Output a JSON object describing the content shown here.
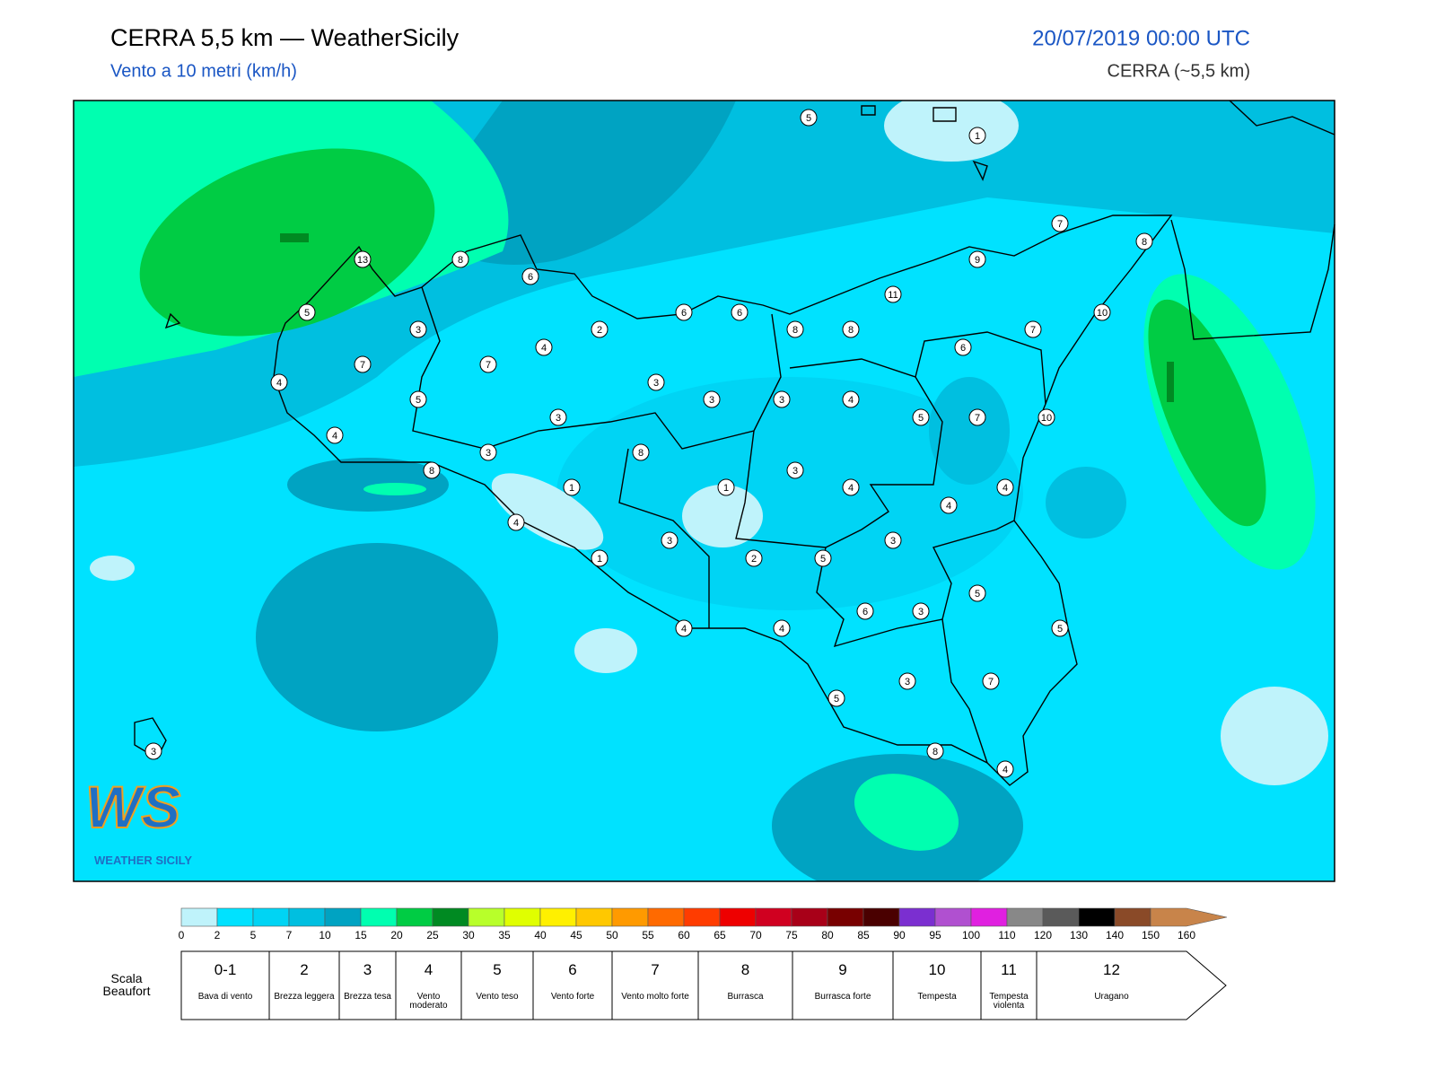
{
  "header": {
    "title": "CERRA 5,5 km — WeatherSicily",
    "subtitle": "Vento a 10 metri (km/h)",
    "datetime": "20/07/2019 00:00 UTC",
    "model": "CERRA (~5,5 km)"
  },
  "map": {
    "stations": [
      5,
      1,
      7,
      8,
      13,
      8,
      6,
      9,
      11,
      5,
      6,
      6,
      8,
      8,
      7,
      10,
      3,
      2,
      4,
      6,
      7,
      7,
      4,
      3,
      3,
      3,
      4,
      5,
      3,
      5,
      7,
      10,
      4,
      8,
      3,
      8,
      3,
      1,
      1,
      4,
      4,
      4,
      4,
      3,
      3,
      1,
      2,
      5,
      5,
      6,
      3,
      4,
      4,
      5,
      3,
      7,
      5,
      8,
      4,
      3
    ]
  },
  "colorbar": {
    "ticks": [
      0,
      2,
      5,
      7,
      10,
      15,
      20,
      25,
      30,
      35,
      40,
      45,
      50,
      55,
      60,
      65,
      70,
      75,
      80,
      85,
      90,
      95,
      100,
      110,
      120,
      130,
      140,
      150,
      160
    ],
    "colors": [
      "#bff3fb",
      "#00e2ff",
      "#00d4f4",
      "#00bfe0",
      "#00a3c2",
      "#00ffb0",
      "#00cc44",
      "#008a22",
      "#b8ff2a",
      "#e0ff00",
      "#fff000",
      "#ffc800",
      "#ff9a00",
      "#ff6a00",
      "#ff3c00",
      "#ee0000",
      "#d00020",
      "#a80018",
      "#780000",
      "#4a0000",
      "#7b2fd0",
      "#b050d0",
      "#e020e0",
      "#888888",
      "#5a5a5a",
      "#000000",
      "#8a4a28",
      "#c8844a"
    ]
  },
  "beaufort": {
    "label": "Scala Beaufort",
    "levels": [
      {
        "force": "0-1",
        "name": "Bava di vento"
      },
      {
        "force": "2",
        "name": "Brezza leggera"
      },
      {
        "force": "3",
        "name": "Brezza tesa"
      },
      {
        "force": "4",
        "name": "Vento moderato"
      },
      {
        "force": "5",
        "name": "Vento teso"
      },
      {
        "force": "6",
        "name": "Vento forte"
      },
      {
        "force": "7",
        "name": "Vento molto forte"
      },
      {
        "force": "8",
        "name": "Burrasca"
      },
      {
        "force": "9",
        "name": "Burrasca forte"
      },
      {
        "force": "10",
        "name": "Tempesta"
      },
      {
        "force": "11",
        "name": "Tempesta violenta"
      },
      {
        "force": "12",
        "name": "Uragano"
      }
    ]
  },
  "logo": {
    "initials": "WS",
    "text": "WEATHER SICILY"
  }
}
